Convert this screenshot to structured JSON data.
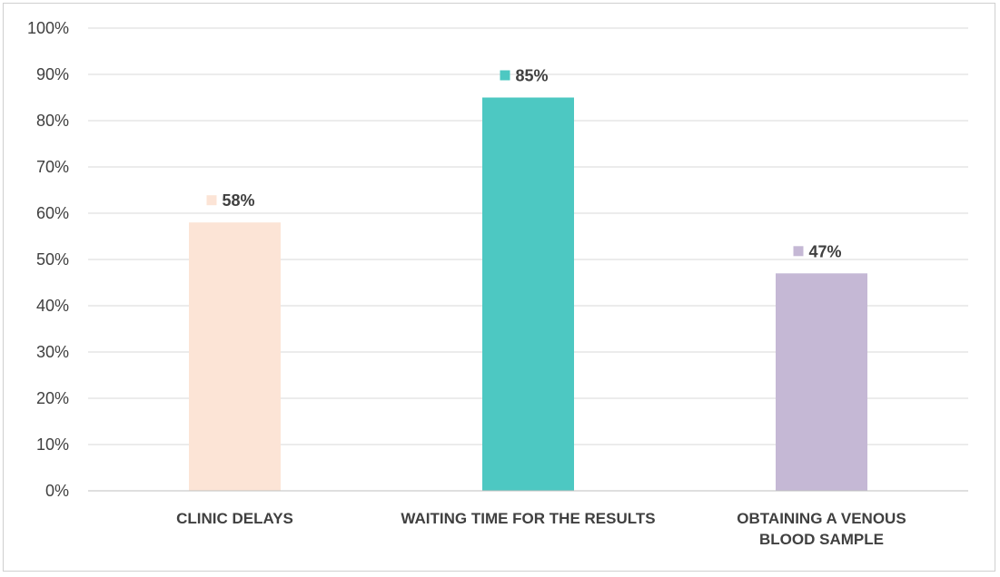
{
  "chart_data": {
    "type": "bar",
    "categories": [
      [
        "CLINIC DELAYS"
      ],
      [
        "WAITING TIME FOR THE RESULTS"
      ],
      [
        "OBTAINING A VENOUS",
        "BLOOD SAMPLE"
      ]
    ],
    "values": [
      58,
      85,
      47
    ],
    "data_labels": [
      "58%",
      "85%",
      "47%"
    ],
    "colors": [
      "#fce4d6",
      "#4dc8c2",
      "#c5b8d5"
    ],
    "ylim": [
      0,
      100
    ],
    "y_ticks": [
      0,
      10,
      20,
      30,
      40,
      50,
      60,
      70,
      80,
      90,
      100
    ],
    "y_tick_labels": [
      "0%",
      "10%",
      "20%",
      "30%",
      "40%",
      "50%",
      "60%",
      "70%",
      "80%",
      "90%",
      "100%"
    ],
    "grid": true,
    "gridline_color": "#d9d9d9",
    "axis_color": "#bfbfbf",
    "legend": "none"
  }
}
